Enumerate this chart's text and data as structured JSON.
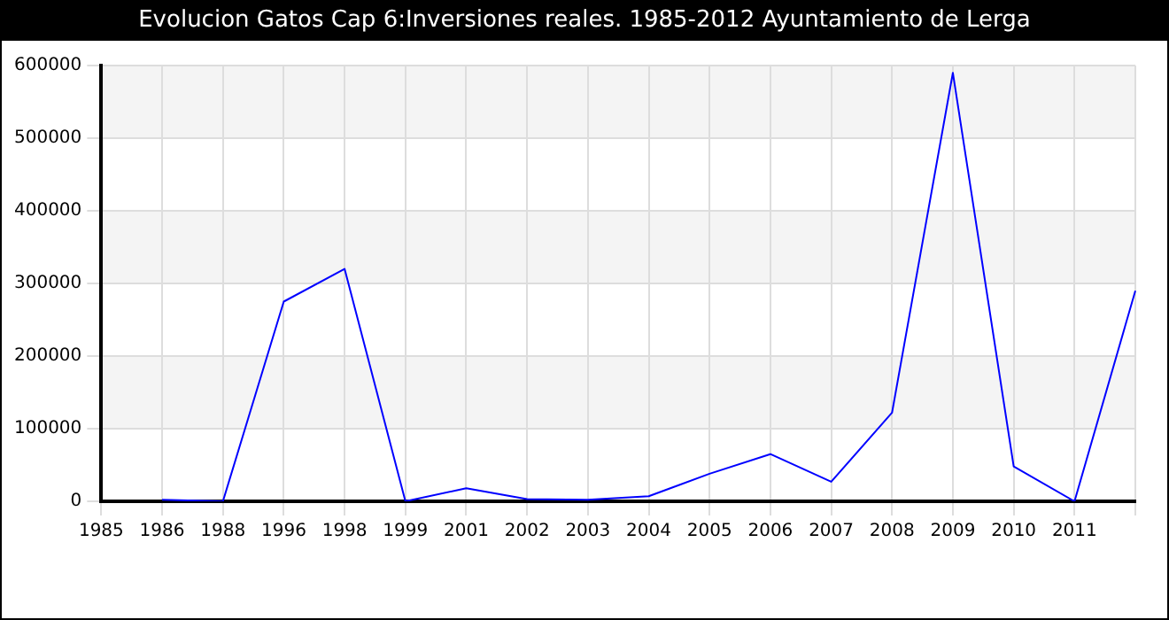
{
  "chart_data": {
    "type": "line",
    "title": "Evolucion Gatos Cap 6:Inversiones reales. 1985-2012 Ayuntamiento de Lerga",
    "categories": [
      "1985",
      "1986",
      "1988",
      "1996",
      "1998",
      "1999",
      "2001",
      "2002",
      "2003",
      "2004",
      "2005",
      "2006",
      "2007",
      "2008",
      "2009",
      "2010",
      "2011",
      null
    ],
    "series": [
      {
        "color": "#0000ff",
        "values": [
          null,
          2000,
          0,
          275000,
          320000,
          0,
          18000,
          3000,
          2000,
          7000,
          38000,
          65000,
          27000,
          122000,
          590000,
          48000,
          0,
          290000
        ]
      }
    ],
    "ylim": [
      0,
      600000
    ],
    "yticks": [
      0,
      100000,
      200000,
      300000,
      400000,
      500000,
      600000
    ],
    "grid": true,
    "legend": false,
    "marker": "none",
    "line_style": "solid"
  }
}
